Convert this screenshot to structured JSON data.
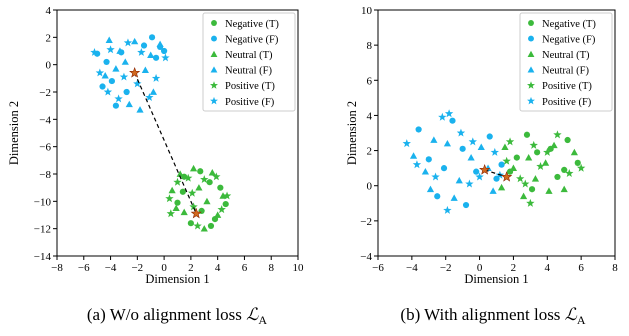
{
  "colors": {
    "true": "#3cba3c",
    "false": "#1ab2ee",
    "anchor": "#d2691e",
    "axis": "#000000",
    "legend_border": "#cccccc"
  },
  "chart_data": [
    {
      "type": "scatter",
      "caption_prefix": "(a) W/o alignment loss ",
      "caption_symbol": "ℒ",
      "caption_sub": "A",
      "xlabel": "Dimension 1",
      "ylabel": "Dimension 2",
      "xlim": [
        -8,
        10
      ],
      "ylim": [
        -14,
        4
      ],
      "xticks": [
        -8,
        -6,
        -4,
        -2,
        0,
        2,
        4,
        6,
        8,
        10
      ],
      "yticks": [
        -14,
        -12,
        -10,
        -8,
        -6,
        -4,
        -2,
        0,
        2,
        4
      ],
      "grid": false,
      "legend_position": "top-right",
      "legend": [
        {
          "label": "Negative (T)",
          "marker": "circle",
          "group": "true"
        },
        {
          "label": "Negative (F)",
          "marker": "circle",
          "group": "false"
        },
        {
          "label": "Neutral (T)",
          "marker": "triangle",
          "group": "true"
        },
        {
          "label": "Neutral (F)",
          "marker": "triangle",
          "group": "false"
        },
        {
          "label": "Positive (T)",
          "marker": "star",
          "group": "true"
        },
        {
          "label": "Positive (F)",
          "marker": "star",
          "group": "false"
        }
      ],
      "anchors": [
        [
          -2.2,
          -0.6
        ],
        [
          2.4,
          -10.9
        ]
      ],
      "series": [
        {
          "marker": "circle",
          "group": "false",
          "points": [
            [
              -5.0,
              0.8
            ],
            [
              -4.3,
              0.2
            ],
            [
              -3.9,
              -1.2
            ],
            [
              -3.2,
              0.9
            ],
            [
              -2.8,
              -2.0
            ],
            [
              -1.5,
              1.4
            ],
            [
              -0.9,
              2.0
            ],
            [
              -0.6,
              0.5
            ],
            [
              0.0,
              1.0
            ],
            [
              -3.6,
              -3.0
            ],
            [
              -0.3,
              1.3
            ],
            [
              -4.6,
              -1.6
            ]
          ]
        },
        {
          "marker": "triangle",
          "group": "false",
          "points": [
            [
              -4.1,
              1.8
            ],
            [
              -3.3,
              1.0
            ],
            [
              -3.6,
              -0.3
            ],
            [
              -2.6,
              -2.9
            ],
            [
              -2.2,
              1.7
            ],
            [
              -1.4,
              -0.4
            ],
            [
              -0.8,
              -2.0
            ],
            [
              -0.3,
              1.5
            ],
            [
              -4.4,
              -0.8
            ],
            [
              -1.8,
              -3.3
            ],
            [
              -2.9,
              0.2
            ],
            [
              -1.0,
              0.7
            ]
          ]
        },
        {
          "marker": "star",
          "group": "false",
          "points": [
            [
              -5.2,
              0.9
            ],
            [
              -4.8,
              -0.6
            ],
            [
              -4.2,
              -2.0
            ],
            [
              -3.4,
              -2.5
            ],
            [
              -2.7,
              1.6
            ],
            [
              -2.0,
              -1.4
            ],
            [
              -1.1,
              -2.4
            ],
            [
              -1.7,
              0.9
            ],
            [
              0.1,
              0.5
            ],
            [
              -0.6,
              -1.0
            ],
            [
              -3.0,
              -0.9
            ],
            [
              -4.0,
              1.1
            ]
          ]
        },
        {
          "marker": "circle",
          "group": "true",
          "points": [
            [
              1.5,
              -8.2
            ],
            [
              2.7,
              -7.8
            ],
            [
              3.4,
              -8.6
            ],
            [
              4.2,
              -9.0
            ],
            [
              4.6,
              -10.2
            ],
            [
              3.8,
              -11.3
            ],
            [
              2.0,
              -11.6
            ],
            [
              1.0,
              -10.1
            ],
            [
              2.8,
              -10.7
            ],
            [
              3.5,
              -11.8
            ],
            [
              1.4,
              -9.3
            ]
          ]
        },
        {
          "marker": "triangle",
          "group": "true",
          "points": [
            [
              0.6,
              -9.2
            ],
            [
              1.2,
              -8.0
            ],
            [
              2.2,
              -7.6
            ],
            [
              3.6,
              -7.9
            ],
            [
              4.4,
              -9.6
            ],
            [
              4.0,
              -11.0
            ],
            [
              3.0,
              -12.0
            ],
            [
              1.5,
              -10.8
            ],
            [
              2.6,
              -9.0
            ],
            [
              3.2,
              -10.0
            ],
            [
              0.9,
              -10.5
            ]
          ]
        },
        {
          "marker": "star",
          "group": "true",
          "points": [
            [
              0.4,
              -9.8
            ],
            [
              1.0,
              -8.6
            ],
            [
              2.1,
              -9.4
            ],
            [
              3.0,
              -8.4
            ],
            [
              4.3,
              -10.6
            ],
            [
              2.5,
              -11.8
            ],
            [
              1.8,
              -8.3
            ],
            [
              0.5,
              -10.9
            ],
            [
              3.9,
              -8.2
            ],
            [
              4.7,
              -9.6
            ],
            [
              2.2,
              -10.4
            ]
          ]
        }
      ]
    },
    {
      "type": "scatter",
      "caption_prefix": "(b) With alignment loss ",
      "caption_symbol": "ℒ",
      "caption_sub": "A",
      "xlabel": "Dimension 1",
      "ylabel": "Dimension 2",
      "xlim": [
        -6,
        8
      ],
      "ylim": [
        -4,
        10
      ],
      "xticks": [
        -6,
        -4,
        -2,
        0,
        2,
        4,
        6,
        8
      ],
      "yticks": [
        -4,
        -2,
        0,
        2,
        4,
        6,
        8,
        10
      ],
      "grid": false,
      "legend_position": "top-right",
      "legend": [
        {
          "label": "Negative (T)",
          "marker": "circle",
          "group": "true"
        },
        {
          "label": "Negative (F)",
          "marker": "circle",
          "group": "false"
        },
        {
          "label": "Neutral (T)",
          "marker": "triangle",
          "group": "true"
        },
        {
          "label": "Neutral (F)",
          "marker": "triangle",
          "group": "false"
        },
        {
          "label": "Positive (T)",
          "marker": "star",
          "group": "true"
        },
        {
          "label": "Positive (F)",
          "marker": "star",
          "group": "false"
        }
      ],
      "anchors": [
        [
          0.3,
          0.9
        ],
        [
          1.6,
          0.5
        ]
      ],
      "series": [
        {
          "marker": "circle",
          "group": "false",
          "points": [
            [
              -3.6,
              3.2
            ],
            [
              -3.0,
              1.5
            ],
            [
              -2.5,
              -0.6
            ],
            [
              -1.6,
              3.7
            ],
            [
              -1.0,
              2.1
            ],
            [
              -0.2,
              0.8
            ],
            [
              0.6,
              2.8
            ],
            [
              1.0,
              0.4
            ],
            [
              -2.1,
              1.0
            ],
            [
              -0.8,
              -1.1
            ],
            [
              1.3,
              1.2
            ]
          ]
        },
        {
          "marker": "triangle",
          "group": "false",
          "points": [
            [
              -3.9,
              1.7
            ],
            [
              -3.2,
              0.8
            ],
            [
              -2.7,
              2.6
            ],
            [
              -1.9,
              2.4
            ],
            [
              -1.2,
              0.3
            ],
            [
              -0.5,
              1.6
            ],
            [
              0.1,
              2.2
            ],
            [
              0.8,
              -0.3
            ],
            [
              -1.5,
              -0.7
            ],
            [
              -2.9,
              -0.2
            ],
            [
              0.5,
              1.0
            ]
          ]
        },
        {
          "marker": "star",
          "group": "false",
          "points": [
            [
              -4.3,
              2.4
            ],
            [
              -3.7,
              1.2
            ],
            [
              -2.2,
              3.9
            ],
            [
              -1.8,
              4.1
            ],
            [
              -1.1,
              3.0
            ],
            [
              -0.4,
              2.5
            ],
            [
              0.0,
              0.5
            ],
            [
              -2.6,
              0.5
            ],
            [
              -1.9,
              -1.4
            ],
            [
              -0.6,
              0.1
            ],
            [
              0.9,
              1.9
            ],
            [
              1.2,
              0.6
            ]
          ]
        },
        {
          "marker": "circle",
          "group": "true",
          "points": [
            [
              1.8,
              0.8
            ],
            [
              2.8,
              2.9
            ],
            [
              3.4,
              1.9
            ],
            [
              4.2,
              2.1
            ],
            [
              5.2,
              2.6
            ],
            [
              5.8,
              1.3
            ],
            [
              4.6,
              0.5
            ],
            [
              3.1,
              -0.2
            ],
            [
              2.2,
              1.6
            ],
            [
              5.0,
              0.9
            ]
          ]
        },
        {
          "marker": "triangle",
          "group": "true",
          "points": [
            [
              1.5,
              2.2
            ],
            [
              2.0,
              1.0
            ],
            [
              2.6,
              -0.6
            ],
            [
              3.3,
              0.4
            ],
            [
              3.9,
              1.3
            ],
            [
              4.4,
              2.3
            ],
            [
              5.0,
              -0.2
            ],
            [
              5.6,
              1.9
            ],
            [
              2.9,
              1.6
            ],
            [
              1.3,
              -0.1
            ],
            [
              4.1,
              -0.3
            ]
          ]
        },
        {
          "marker": "star",
          "group": "true",
          "points": [
            [
              1.8,
              2.5
            ],
            [
              2.4,
              0.4
            ],
            [
              3.0,
              -1.0
            ],
            [
              3.6,
              1.1
            ],
            [
              4.6,
              2.9
            ],
            [
              5.3,
              0.7
            ],
            [
              6.0,
              1.0
            ],
            [
              4.0,
              1.9
            ],
            [
              3.2,
              2.3
            ],
            [
              1.6,
              1.4
            ],
            [
              2.7,
              0.1
            ]
          ]
        }
      ]
    }
  ]
}
